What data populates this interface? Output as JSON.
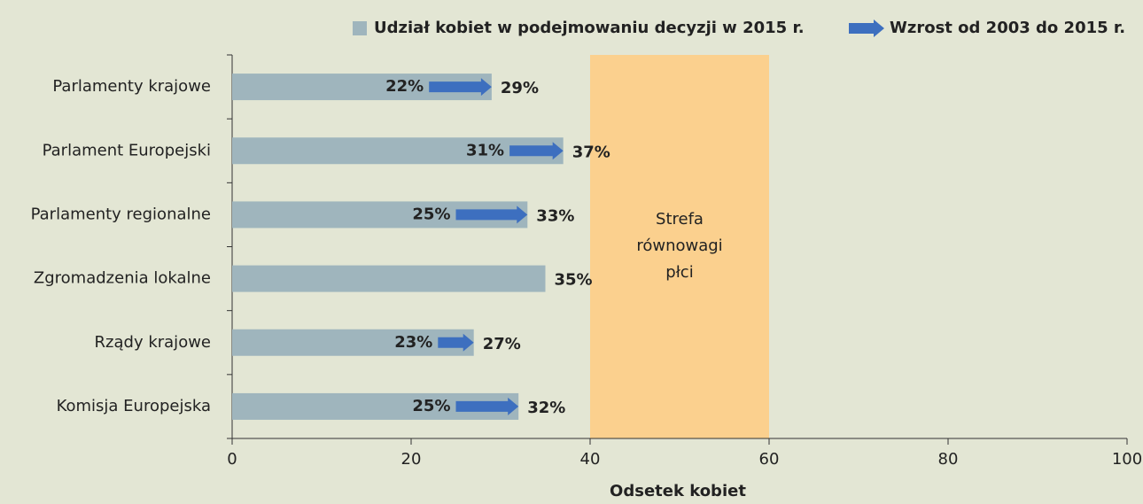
{
  "chart_data": {
    "type": "bar",
    "categories": [
      "Parlamenty krajowe",
      "Parlament Europejski",
      "Parlamenty regionalne",
      "Zgromadzenia lokalne",
      "Rządy krajowe",
      "Komisja Europejska"
    ],
    "series": [
      {
        "name": "Udział kobiet w podejmowaniu decyzji w 2015 r.",
        "color": "#9fb5bd",
        "values": [
          29,
          37,
          33,
          35,
          27,
          32
        ],
        "value_labels": [
          "29%",
          "37%",
          "33%",
          "35%",
          "27%",
          "32%"
        ]
      },
      {
        "name": "Wzrost od 2003 do 2015 r.",
        "color": "#3d6fbf",
        "values": [
          22,
          31,
          25,
          null,
          23,
          25
        ],
        "value_labels": [
          "22%",
          "31%",
          "25%",
          null,
          "23%",
          "25%"
        ]
      }
    ],
    "xlim": [
      0,
      100
    ],
    "xticks": [
      0,
      20,
      40,
      60,
      80,
      100
    ],
    "xlabel": "Odsetek kobiet",
    "zone": {
      "range": [
        40,
        60
      ],
      "color": "#fbd08e",
      "label": [
        "Strefa",
        "równowagi",
        "płci"
      ]
    }
  }
}
